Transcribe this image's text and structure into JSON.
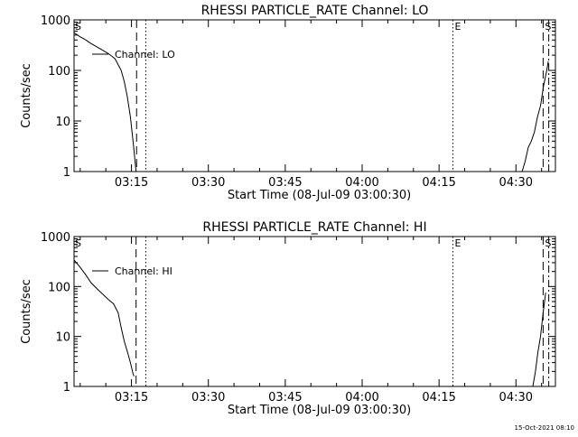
{
  "footer": {
    "timestamp": "15-Oct-2021 08:10"
  },
  "chart_data": [
    {
      "type": "line",
      "title": "RHESSI PARTICLE_RATE Channel: LO",
      "xlabel": "Start Time (08-Jul-09 03:00:30)",
      "ylabel": "Counts/sec",
      "y_scale": "log",
      "xlim": [
        3.8,
        97.7
      ],
      "ylim": [
        1,
        1000
      ],
      "x_unit": "minutes after 03:00:00",
      "x_ticks": [
        {
          "x": 15,
          "label": "03:15"
        },
        {
          "x": 30,
          "label": "03:30"
        },
        {
          "x": 45,
          "label": "03:45"
        },
        {
          "x": 60,
          "label": "04:00"
        },
        {
          "x": 75,
          "label": "04:15"
        },
        {
          "x": 90,
          "label": "04:30"
        }
      ],
      "y_ticks": [
        {
          "y": 1,
          "label": "1"
        },
        {
          "y": 10,
          "label": "10"
        },
        {
          "y": 100,
          "label": "100"
        },
        {
          "y": 1000,
          "label": "1000"
        }
      ],
      "legend": {
        "label": "Channel: LO",
        "placement": "top-left"
      },
      "series": [
        {
          "name": "Channel: LO",
          "x": [
            3.8,
            4.9,
            6.1,
            7.1,
            8.3,
            9.4,
            10.5,
            11.2,
            11.8,
            12.4,
            13.0,
            13.6,
            14.2,
            14.8,
            15.3,
            15.6,
            15.9
          ],
          "y": [
            560,
            470,
            400,
            340,
            290,
            250,
            215,
            190,
            170,
            130,
            100,
            60,
            30,
            12,
            4,
            2,
            1
          ],
          "x2": [
            91.2,
            91.8,
            92.4,
            93.0,
            93.6,
            94.2,
            94.8,
            95.4,
            96.0,
            96.3
          ],
          "y2": [
            1,
            1.6,
            3,
            4,
            6,
            12,
            20,
            50,
            100,
            150
          ]
        }
      ],
      "vlines": [
        {
          "x": 16.0,
          "style": "dashed"
        },
        {
          "x": 17.8,
          "style": "dotted"
        },
        {
          "x": 77.7,
          "style": "dotted",
          "label": "E"
        },
        {
          "x": 95.3,
          "style": "dashed",
          "label": "S"
        },
        {
          "x": 96.4,
          "style": "dashdot"
        }
      ],
      "edge_label": "S"
    },
    {
      "type": "line",
      "title": "RHESSI PARTICLE_RATE Channel: HI",
      "xlabel": "Start Time (08-Jul-09 03:00:30)",
      "ylabel": "Counts/sec",
      "y_scale": "log",
      "xlim": [
        3.8,
        97.7
      ],
      "ylim": [
        1,
        1000
      ],
      "x_unit": "minutes after 03:00:00",
      "x_ticks": [
        {
          "x": 15,
          "label": "03:15"
        },
        {
          "x": 30,
          "label": "03:30"
        },
        {
          "x": 45,
          "label": "03:45"
        },
        {
          "x": 60,
          "label": "04:00"
        },
        {
          "x": 75,
          "label": "04:15"
        },
        {
          "x": 90,
          "label": "04:30"
        }
      ],
      "y_ticks": [
        {
          "y": 1,
          "label": "1"
        },
        {
          "y": 10,
          "label": "10"
        },
        {
          "y": 100,
          "label": "100"
        },
        {
          "y": 1000,
          "label": "1000"
        }
      ],
      "legend": {
        "label": "Channel: HI",
        "placement": "top-left"
      },
      "series": [
        {
          "name": "Channel: HI",
          "x": [
            3.8,
            4.9,
            6.1,
            7.1,
            8.3,
            9.4,
            10.5,
            11.5,
            12.4,
            13.0,
            13.6,
            14.2,
            14.8,
            15.3,
            15.5
          ],
          "y": [
            340,
            250,
            170,
            120,
            90,
            70,
            55,
            45,
            30,
            15,
            8,
            5,
            3,
            1.8,
            1.6
          ],
          "x2": [
            93.3,
            93.8,
            94.3,
            94.8,
            95.3,
            95.8
          ],
          "y2": [
            1,
            2,
            5,
            10,
            30,
            75
          ]
        }
      ],
      "vlines": [
        {
          "x": 15.9,
          "style": "dashed"
        },
        {
          "x": 17.8,
          "style": "dotted"
        },
        {
          "x": 77.7,
          "style": "dotted",
          "label": "E"
        },
        {
          "x": 95.3,
          "style": "dashed",
          "label": "S"
        },
        {
          "x": 96.4,
          "style": "dashdot"
        }
      ],
      "edge_label": "S"
    }
  ]
}
